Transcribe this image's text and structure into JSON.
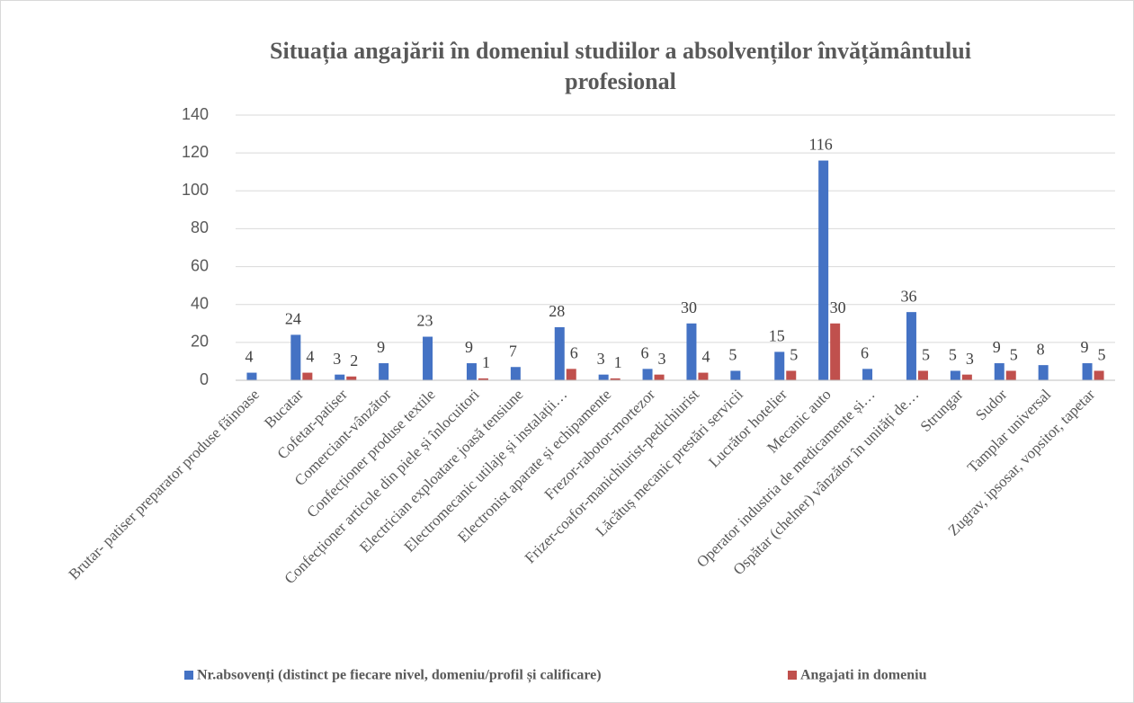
{
  "chart_data": {
    "type": "bar",
    "title": "Situația angajării în domeniul studiilor a absolvenților învățământului profesional",
    "categories": [
      "Brutar- patiser preparator produse făinoase",
      "Bucatar",
      "Cofetar-patiser",
      "Comerciant-vânzător",
      "Confecționer produse textile",
      "Confecționer articole din piele și înlocuitori",
      "Electrician exploatare joasă tensiune",
      "Electromecanic utilaje și instalații…",
      "Electronist aparate și echipamente",
      "Frezor-rabotor-mortezor",
      "Frizer-coafor-manichiurist-pedichiurist",
      "Lăcătuș mecanic prestări servicii",
      "Lucrător hotelier",
      "Mecanic auto",
      "Operator industria de medicamente și…",
      "Ospătar (chelner) vânzător în unități de…",
      "Strungar",
      "Sudor",
      "Tamplar universal",
      "Zugrav, ipsosar, vopsitor, tapetar"
    ],
    "series": [
      {
        "name": "Nr.absovenți (distinct pe fiecare nivel, domeniu/profil și calificare)",
        "color": "#4472c4",
        "values": [
          4,
          24,
          3,
          9,
          23,
          9,
          7,
          28,
          3,
          6,
          30,
          5,
          15,
          116,
          6,
          36,
          5,
          9,
          8,
          9
        ]
      },
      {
        "name": "Angajati in domeniu",
        "color": "#c0504d",
        "values": [
          null,
          4,
          2,
          null,
          null,
          1,
          null,
          6,
          1,
          3,
          4,
          null,
          5,
          30,
          null,
          5,
          3,
          5,
          null,
          5
        ]
      }
    ],
    "ylim": [
      0,
      140
    ],
    "yticks": [
      0,
      20,
      40,
      60,
      80,
      100,
      120,
      140
    ],
    "grid": true,
    "legend": "bottom"
  }
}
